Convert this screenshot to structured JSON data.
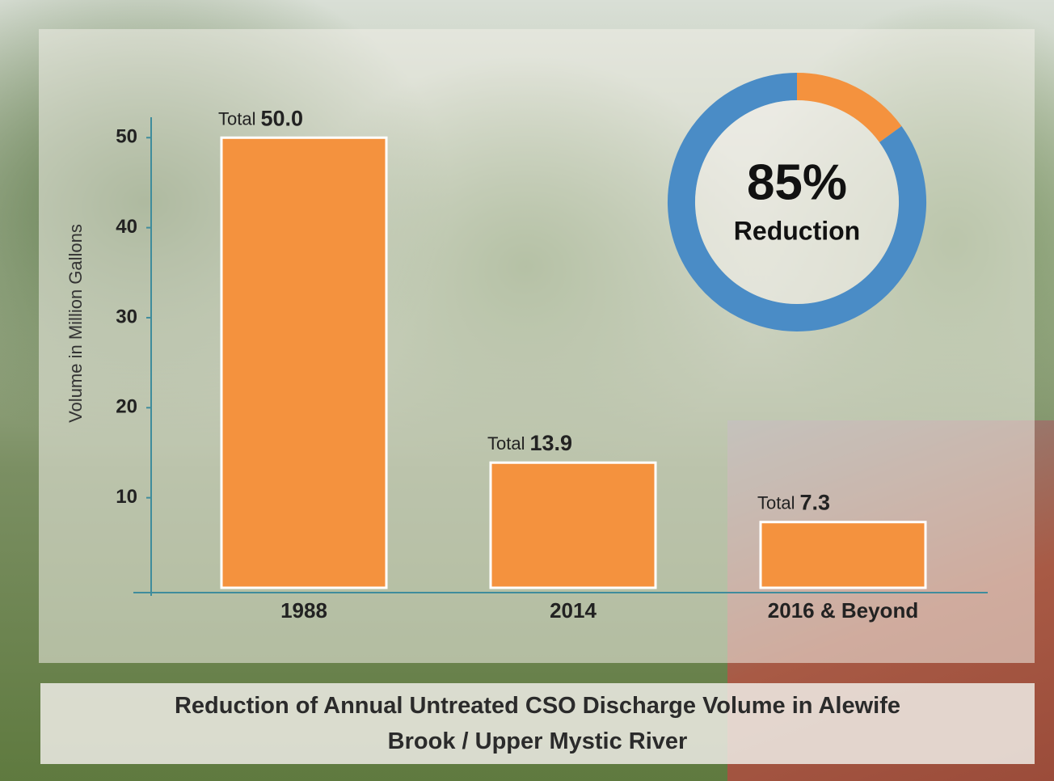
{
  "chart_data": [
    {
      "type": "bar",
      "title": "Reduction of Annual Untreated CSO Discharge Volume in Alewife Brook / Upper Mystic River",
      "y_label": "Volume in Million Gallons",
      "categories": [
        "1988",
        "2014",
        "2016 & Beyond"
      ],
      "values": [
        50.0,
        13.9,
        7.3
      ],
      "value_labels": [
        "50.0",
        "13.9",
        "7.3"
      ],
      "value_label_prefix": "Total",
      "color": "#f4923e",
      "ylim": [
        0,
        52
      ],
      "yticks": [
        10,
        20,
        30,
        40,
        50
      ]
    },
    {
      "type": "donut",
      "values": [
        15,
        85
      ],
      "colors": [
        "#f4923e",
        "#4a8cc6"
      ],
      "value_labels": [
        null,
        "85%"
      ],
      "label": "Reduction"
    }
  ]
}
